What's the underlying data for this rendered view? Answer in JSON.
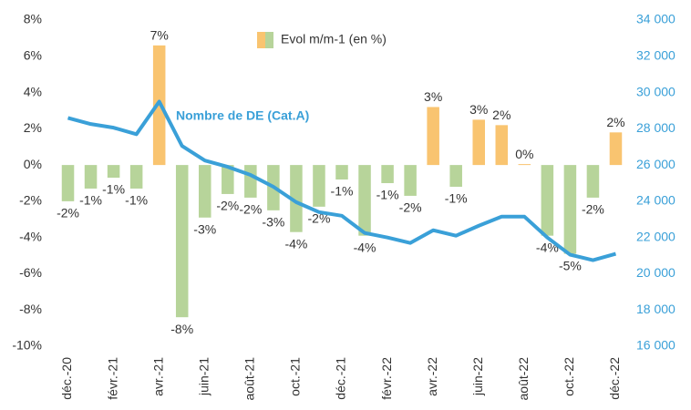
{
  "chart_data": {
    "type": "bar-line",
    "categories": [
      "déc.-20",
      null,
      "févr.-21",
      null,
      "avr.-21",
      null,
      "juin-21",
      null,
      "août-21",
      null,
      "oct.-21",
      null,
      "déc.-21",
      null,
      "févr.-22",
      null,
      "avr.-22",
      null,
      "juin-22",
      null,
      "août-22",
      null,
      "oct.-22",
      null,
      "déc.-22"
    ],
    "series": [
      {
        "name": "Evol m/m-1 (en %)",
        "type": "bar",
        "axis": "y",
        "positive_color": "#f9c470",
        "negative_color": "#b7d49a",
        "values": [
          -2.0,
          -1.3,
          -0.7,
          -1.3,
          6.6,
          -8.4,
          -2.9,
          -1.6,
          -1.8,
          -2.5,
          -3.7,
          -2.3,
          -0.8,
          -3.9,
          -1.0,
          -1.7,
          3.2,
          -1.2,
          2.5,
          2.2,
          0.05,
          -3.9,
          -4.9,
          -1.8,
          1.8
        ],
        "value_labels": [
          "-2%",
          "-1%",
          "-1%",
          "-1%",
          "7%",
          "-8%",
          "-3%",
          "-2%",
          "-2%",
          "-3%",
          "-4%",
          "-2%",
          "-1%",
          "-4%",
          "-1%",
          "-2%",
          "3%",
          "-1%",
          "3%",
          "2%",
          "0%",
          "-4%",
          "-5%",
          "-2%",
          "2%"
        ]
      },
      {
        "name": "Nombre de DE (Cat.A)",
        "type": "line",
        "axis": "y2",
        "color": "#3aa0d8",
        "values": [
          28600,
          28260,
          28060,
          27700,
          29500,
          27050,
          26250,
          25900,
          25450,
          24800,
          23950,
          23400,
          23200,
          22250,
          22000,
          21700,
          22400,
          22100,
          22650,
          23150,
          23150,
          22000,
          21050,
          20750,
          21100
        ]
      }
    ],
    "ylim": [
      -10,
      8
    ],
    "yticks": [
      {
        "value": -10,
        "label": "-10%"
      },
      {
        "value": -8,
        "label": "-8%"
      },
      {
        "value": -6,
        "label": "-6%"
      },
      {
        "value": -4,
        "label": "-4%"
      },
      {
        "value": -2,
        "label": "-2%"
      },
      {
        "value": 0,
        "label": "0%"
      },
      {
        "value": 2,
        "label": "2%"
      },
      {
        "value": 4,
        "label": "4%"
      },
      {
        "value": 6,
        "label": "6%"
      },
      {
        "value": 8,
        "label": "8%"
      }
    ],
    "y2lim": [
      16000,
      34000
    ],
    "y2ticks": [
      {
        "value": 16000,
        "label": "16 000"
      },
      {
        "value": 18000,
        "label": "18 000"
      },
      {
        "value": 20000,
        "label": "20 000"
      },
      {
        "value": 22000,
        "label": "22 000"
      },
      {
        "value": 24000,
        "label": "24 000"
      },
      {
        "value": 26000,
        "label": "26 000"
      },
      {
        "value": 28000,
        "label": "28 000"
      },
      {
        "value": 30000,
        "label": "30 000"
      },
      {
        "value": 32000,
        "label": "32 000"
      },
      {
        "value": 34000,
        "label": "34 000"
      }
    ],
    "y2_color": "#3aa0d8",
    "grid": false
  }
}
